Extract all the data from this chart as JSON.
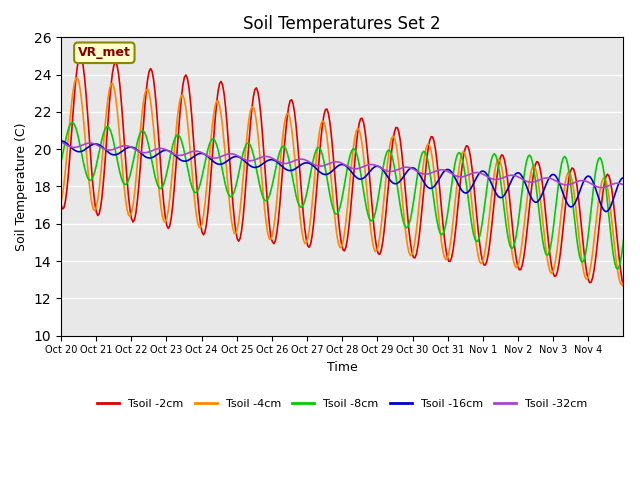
{
  "title": "Soil Temperatures Set 2",
  "xlabel": "Time",
  "ylabel": "Soil Temperature (C)",
  "ylim": [
    10,
    26
  ],
  "yticks": [
    10,
    12,
    14,
    16,
    18,
    20,
    22,
    24,
    26
  ],
  "background_color": "#e8e8e8",
  "annotation_text": "VR_met",
  "series_colors": {
    "Tsoil -2cm": "#dd0000",
    "Tsoil -4cm": "#ff8800",
    "Tsoil -8cm": "#00cc00",
    "Tsoil -16cm": "#0000cc",
    "Tsoil -32cm": "#aa44cc"
  },
  "xtick_labels": [
    "Oct 20",
    "Oct 21",
    "Oct 22",
    "Oct 23",
    "Oct 24",
    "Oct 25",
    "Oct 26",
    "Oct 27",
    "Oct 28",
    "Oct 29",
    "Oct 30",
    "Oct 31",
    "Nov 1",
    "Nov 2",
    "Nov 3",
    "Nov 4"
  ],
  "n_days": 16
}
